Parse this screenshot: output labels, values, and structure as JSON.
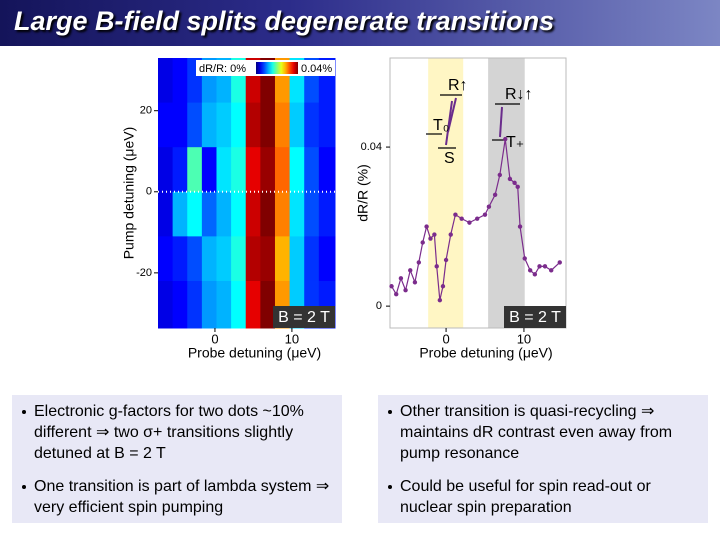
{
  "title": "Large B-field splits degenerate transitions",
  "chart_data": [
    {
      "type": "heatmap",
      "xlabel": "Probe detuning (μeV)",
      "ylabel": "Pump detuning (μeV)",
      "x_bins": [
        -7.4,
        -5.5,
        -3.6,
        -1.7,
        0.2,
        2.1,
        4,
        5.9,
        7.8,
        9.7,
        11.6,
        13.5,
        15.6
      ],
      "y_bins": [
        33,
        22,
        11,
        0,
        -11,
        -22,
        -33.6
      ],
      "z": [
        [
          0.004,
          0.005,
          0.007,
          0.011,
          0.012,
          0.016,
          0.037,
          0.04,
          0.029,
          0.014,
          0.008,
          0.006
        ],
        [
          0.005,
          0.005,
          0.008,
          0.012,
          0.013,
          0.015,
          0.038,
          0.04,
          0.03,
          0.013,
          0.007,
          0.006
        ],
        [
          0.004,
          0.006,
          0.018,
          0.005,
          0.014,
          0.016,
          0.036,
          0.039,
          0.031,
          0.015,
          0.008,
          0.005
        ],
        [
          0.004,
          0.012,
          0.015,
          0.009,
          0.012,
          0.015,
          0.037,
          0.04,
          0.03,
          0.014,
          0.008,
          0.006
        ],
        [
          0.005,
          0.006,
          0.008,
          0.012,
          0.013,
          0.016,
          0.038,
          0.039,
          0.028,
          0.013,
          0.007,
          0.005
        ],
        [
          0.004,
          0.005,
          0.007,
          0.011,
          0.012,
          0.015,
          0.036,
          0.04,
          0.029,
          0.013,
          0.007,
          0.006
        ]
      ],
      "zlim": [
        0,
        0.04
      ],
      "colorbar_labels": [
        "dR/R: 0%",
        "0.04%"
      ],
      "xlim": [
        -7.4,
        15.6
      ],
      "ylim": [
        -33.6,
        33
      ],
      "xticks": [
        0,
        10
      ],
      "yticks": [
        20,
        0,
        -20
      ],
      "annotation": "B = 2 T"
    },
    {
      "type": "line",
      "xlabel": "Probe detuning (μeV)",
      "ylabel": "dR/R (%)",
      "xlim": [
        -7.2,
        15.4
      ],
      "ylim": [
        -0.0055,
        0.0624
      ],
      "xticks": [
        0,
        10
      ],
      "yticks": [
        0,
        0.04
      ],
      "bands": [
        {
          "x": [
            -2.3,
            2.2
          ],
          "color": "#fff6c4"
        },
        {
          "x": [
            5.4,
            10.1
          ],
          "color": "#d4d4d4"
        }
      ],
      "level_labels": [
        "R↑",
        "T₀",
        "S",
        "R↓↑",
        "T₊"
      ],
      "annotation": "B = 2 T",
      "series": [
        {
          "color": "#7b2c8c",
          "x": [
            -7,
            -6.4,
            -5.8,
            -5.2,
            -4.6,
            -4,
            -3.5,
            -3,
            -2.5,
            -2,
            -1.5,
            -1.2,
            -0.8,
            -0.4,
            0,
            0.6,
            1.2,
            2,
            3,
            4,
            5,
            5.5,
            6.3,
            6.9,
            7.6,
            8.2,
            8.8,
            9.2,
            9.5,
            10.1,
            10.8,
            11.4,
            12,
            12.7,
            13.5,
            14.6
          ],
          "values": [
            0.005,
            0.003,
            0.007,
            0.004,
            0.009,
            0.006,
            0.011,
            0.016,
            0.02,
            0.017,
            0.018,
            0.01,
            0.0015,
            0.005,
            0.0116,
            0.018,
            0.023,
            0.022,
            0.021,
            0.022,
            0.023,
            0.025,
            0.028,
            0.033,
            0.042,
            0.032,
            0.031,
            0.03,
            0.02,
            0.012,
            0.009,
            0.008,
            0.01,
            0.01,
            0.009,
            0.011
          ]
        }
      ]
    }
  ],
  "bullets": {
    "left": [
      "Electronic g-factors for two dots ~10% different ⇒ two σ+ transitions slightly detuned at B = 2 T",
      "One transition is part of lambda system ⇒ very efficient spin pumping"
    ],
    "right": [
      "Other transition is quasi-recycling ⇒ maintains dR contrast even away from pump resonance",
      "Could be useful for spin read-out or nuclear spin preparation"
    ]
  }
}
